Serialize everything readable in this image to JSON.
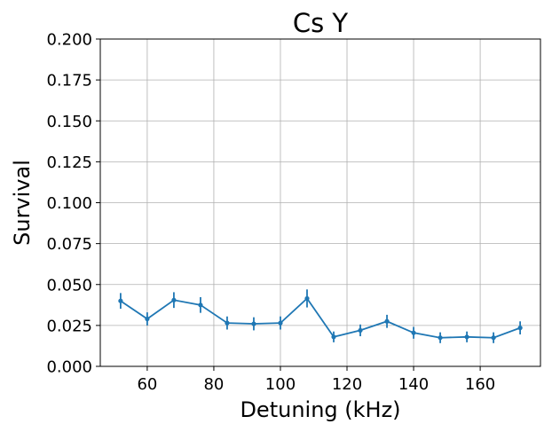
{
  "chart_data": {
    "type": "line",
    "title": "Cs Y",
    "xlabel": "Detuning (kHz)",
    "ylabel": "Survival",
    "xlim": [
      45.9,
      178.1
    ],
    "ylim": [
      0.0,
      0.2
    ],
    "xticks": [
      60,
      80,
      100,
      120,
      140,
      160
    ],
    "xtick_labels": [
      "60",
      "80",
      "100",
      "120",
      "140",
      "160"
    ],
    "yticks": [
      0.0,
      0.025,
      0.05,
      0.075,
      0.1,
      0.125,
      0.15,
      0.175,
      0.2
    ],
    "ytick_labels": [
      "0.000",
      "0.025",
      "0.050",
      "0.075",
      "0.100",
      "0.125",
      "0.150",
      "0.175",
      "0.200"
    ],
    "grid": true,
    "color": "#1f77b4",
    "series": [
      {
        "x": [
          52,
          60,
          68,
          76,
          84,
          92,
          100,
          108,
          116,
          124,
          132,
          140,
          148,
          156,
          164,
          172
        ],
        "y": [
          0.04,
          0.029,
          0.0405,
          0.0375,
          0.0265,
          0.026,
          0.0265,
          0.0415,
          0.018,
          0.022,
          0.0275,
          0.0205,
          0.0175,
          0.018,
          0.0175,
          0.0235
        ],
        "yerr": [
          0.0048,
          0.004,
          0.0048,
          0.0048,
          0.004,
          0.004,
          0.004,
          0.0055,
          0.0033,
          0.0036,
          0.004,
          0.0036,
          0.0033,
          0.0033,
          0.0033,
          0.004
        ]
      }
    ]
  }
}
